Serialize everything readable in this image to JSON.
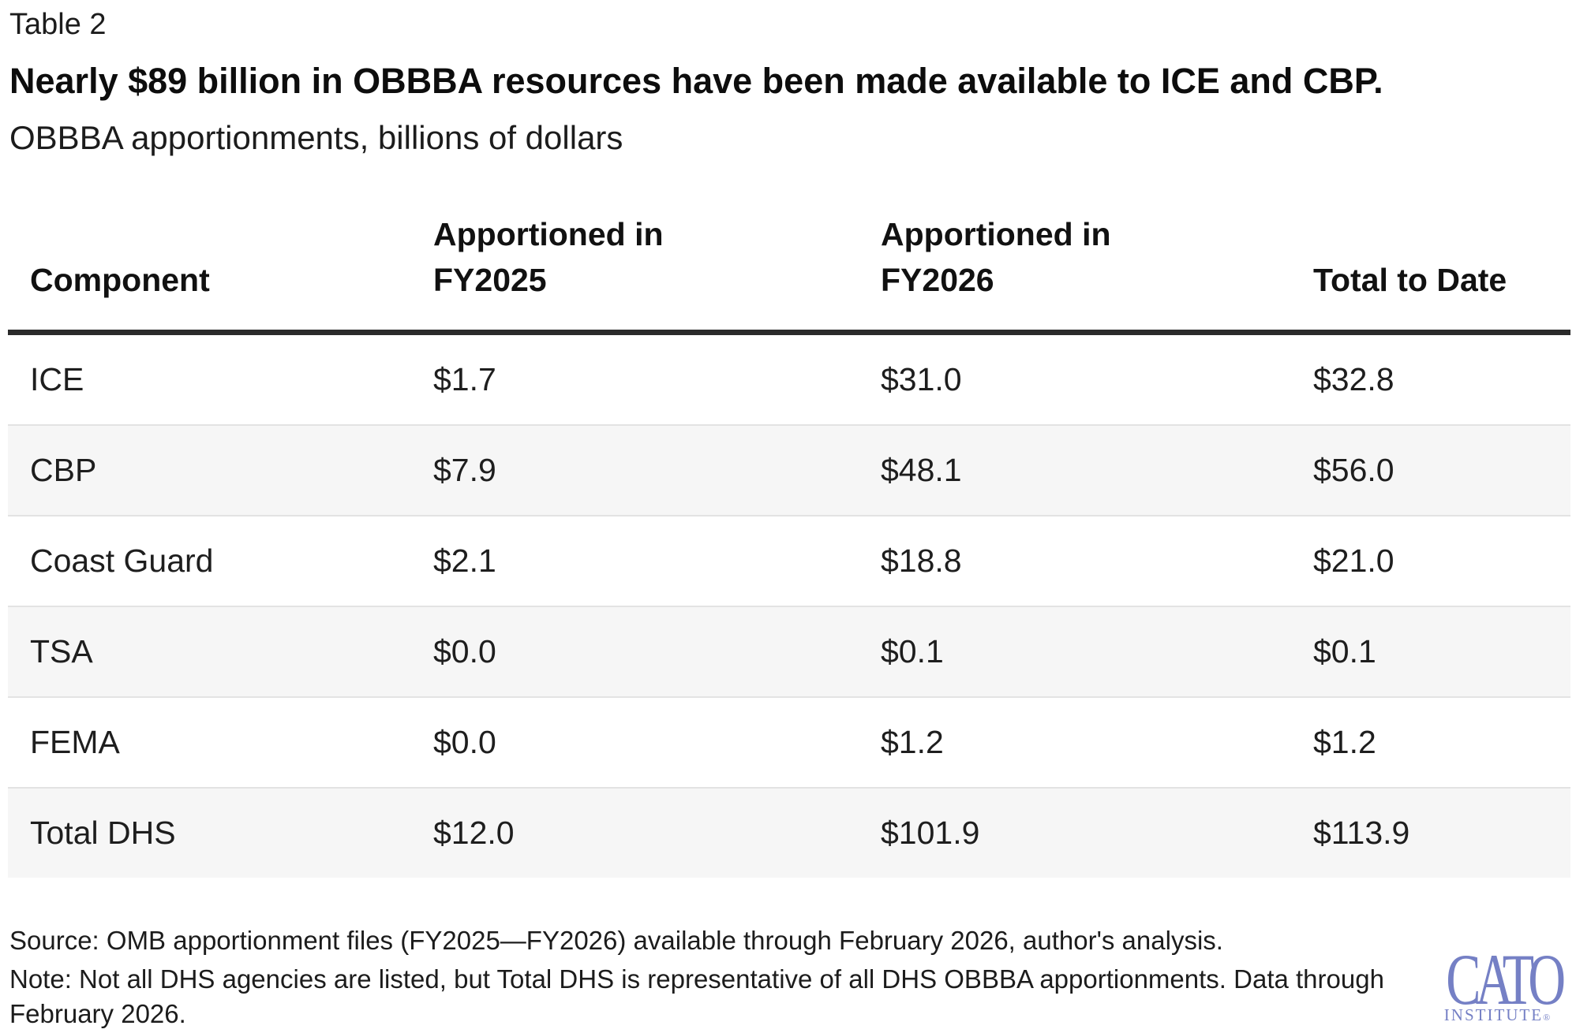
{
  "header": {
    "table_label": "Table 2",
    "title": "Nearly $89 billion in OBBBA resources have been made available to ICE and CBP.",
    "subtitle": "OBBBA apportionments, billions of dollars"
  },
  "table": {
    "headers": [
      {
        "line1": "",
        "line2": "Component"
      },
      {
        "line1": "Apportioned in",
        "line2": "FY2025"
      },
      {
        "line1": "Apportioned in",
        "line2": "FY2026"
      },
      {
        "line1": "",
        "line2": "Total to Date"
      }
    ],
    "rows": [
      {
        "cells": [
          "ICE",
          "$1.7",
          "$31.0",
          "$32.8"
        ]
      },
      {
        "cells": [
          "CBP",
          "$7.9",
          "$48.1",
          "$56.0"
        ]
      },
      {
        "cells": [
          "Coast Guard",
          "$2.1",
          "$18.8",
          "$21.0"
        ]
      },
      {
        "cells": [
          "TSA",
          "$0.0",
          "$0.1",
          "$0.1"
        ]
      },
      {
        "cells": [
          "FEMA",
          "$0.0",
          "$1.2",
          "$1.2"
        ]
      },
      {
        "cells": [
          "Total DHS",
          "$12.0",
          "$101.9",
          "$113.9"
        ]
      }
    ]
  },
  "chart_data": {
    "type": "table",
    "title": "Nearly $89 billion in OBBBA resources have been made available to ICE and CBP.",
    "subtitle": "OBBBA apportionments, billions of dollars",
    "units": "billions of dollars",
    "columns": [
      "Component",
      "Apportioned in FY2025",
      "Apportioned in FY2026",
      "Total to Date"
    ],
    "rows": [
      [
        "ICE",
        1.7,
        31.0,
        32.8
      ],
      [
        "CBP",
        7.9,
        48.1,
        56.0
      ],
      [
        "Coast Guard",
        2.1,
        18.8,
        21.0
      ],
      [
        "TSA",
        0.0,
        0.1,
        0.1
      ],
      [
        "FEMA",
        0.0,
        1.2,
        1.2
      ],
      [
        "Total DHS",
        12.0,
        101.9,
        113.9
      ]
    ]
  },
  "footer": {
    "source": "Source: OMB apportionment files (FY2025—FY2026) available through February 2026, author's analysis.",
    "note": "Note: Not all DHS agencies are listed, but Total DHS is representative of all DHS OBBBA apportionments. Data through February 2026.",
    "logo": {
      "wordmark": "CATO",
      "subtext": "INSTITUTE",
      "registered": "®",
      "color": "#7580C5"
    }
  },
  "colors": {
    "background": "#ffffff",
    "text": "#1e1e1e",
    "header_rule": "#2b2b2b",
    "row_alt_background": "#f6f6f6",
    "row_border": "#e3e3e3",
    "logo_blue": "#7580C5"
  }
}
